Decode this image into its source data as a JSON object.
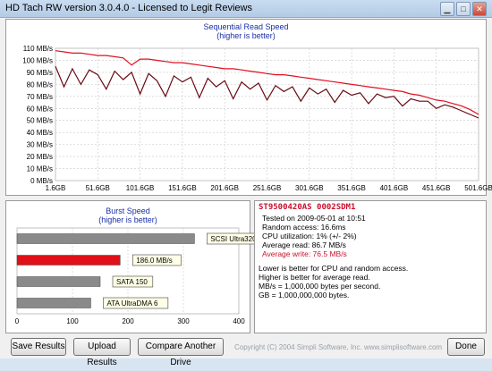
{
  "window": {
    "title": "HD Tach RW version 3.0.4.0  -  Licensed to Legit Reviews"
  },
  "read_chart": {
    "title": "Sequential Read Speed",
    "subtitle": "(higher is better)"
  },
  "burst_chart": {
    "title": "Burst Speed",
    "subtitle": "(higher is better)"
  },
  "drive_info": {
    "model": "ST9500420AS  0002SDM1",
    "tested_on": "Tested on 2009-05-01 at 10:51",
    "random_access": "Random access: 16.6ms",
    "cpu_util": "CPU utilization: 1% (+/- 2%)",
    "avg_read": "Average read: 86.7 MB/s",
    "avg_write": "Average write: 76.5 MB/s",
    "note1": "Lower is better for CPU and random access.",
    "note2": "Higher is better for average read.",
    "note3": "MB/s = 1,000,000 bytes per second.",
    "note4": "GB = 1,000,000,000 bytes."
  },
  "buttons": {
    "save": "Save Results",
    "upload": "Upload Results",
    "compare": "Compare Another Drive",
    "done": "Done"
  },
  "copyright": "Copyright (C) 2004 Simpli Software, Inc. www.simplisoftware.com",
  "colors": {
    "read": "#e01020",
    "write": "#6a0a14",
    "burst_highlight": "#e01018",
    "bar_gray": "#8a8a8a",
    "accent_text": "#1a2fa8",
    "model_text": "#c8102e"
  },
  "chart_data": [
    {
      "type": "line",
      "title": "Sequential Read Speed",
      "subtitle": "(higher is better)",
      "x_ticks": [
        "1.6GB",
        "51.6GB",
        "101.6GB",
        "151.6GB",
        "201.6GB",
        "251.6GB",
        "301.6GB",
        "351.6GB",
        "401.6GB",
        "451.6GB",
        "501.6GB"
      ],
      "y_ticks": [
        "0 MB/s",
        "10 MB/s",
        "20 MB/s",
        "30 MB/s",
        "40 MB/s",
        "50 MB/s",
        "60 MB/s",
        "70 MB/s",
        "80 MB/s",
        "90 MB/s",
        "100 MB/s",
        "110 MB/s"
      ],
      "xlim": [
        1.6,
        501.6
      ],
      "ylim": [
        0,
        110
      ],
      "series": [
        {
          "name": "Read",
          "color": "#e01020",
          "x": [
            1.6,
            11.6,
            21.6,
            31.6,
            41.6,
            51.6,
            61.6,
            71.6,
            81.6,
            91.6,
            101.6,
            111.6,
            121.6,
            131.6,
            141.6,
            151.6,
            161.6,
            171.6,
            181.6,
            191.6,
            201.6,
            211.6,
            221.6,
            231.6,
            241.6,
            251.6,
            261.6,
            271.6,
            281.6,
            291.6,
            301.6,
            311.6,
            321.6,
            331.6,
            341.6,
            351.6,
            361.6,
            371.6,
            381.6,
            391.6,
            401.6,
            411.6,
            421.6,
            431.6,
            441.6,
            451.6,
            461.6,
            471.6,
            481.6,
            491.6,
            501.6
          ],
          "values": [
            108,
            107,
            106,
            106,
            105,
            104,
            104,
            103,
            102,
            96,
            101,
            101,
            100,
            99,
            98,
            98,
            97,
            96,
            95,
            94,
            93,
            93,
            92,
            91,
            90,
            89,
            88,
            88,
            87,
            86,
            85,
            84,
            83,
            82,
            81,
            80,
            79,
            78,
            77,
            76,
            75,
            74,
            72,
            71,
            69,
            67,
            66,
            64,
            62,
            59,
            55
          ]
        },
        {
          "name": "Write",
          "color": "#6a0a14",
          "x": [
            1.6,
            11.6,
            21.6,
            31.6,
            41.6,
            51.6,
            61.6,
            71.6,
            81.6,
            91.6,
            101.6,
            111.6,
            121.6,
            131.6,
            141.6,
            151.6,
            161.6,
            171.6,
            181.6,
            191.6,
            201.6,
            211.6,
            221.6,
            231.6,
            241.6,
            251.6,
            261.6,
            271.6,
            281.6,
            291.6,
            301.6,
            311.6,
            321.6,
            331.6,
            341.6,
            351.6,
            361.6,
            371.6,
            381.6,
            391.6,
            401.6,
            411.6,
            421.6,
            431.6,
            441.6,
            451.6,
            461.6,
            471.6,
            481.6,
            491.6,
            501.6
          ],
          "values": [
            95,
            78,
            93,
            80,
            92,
            88,
            76,
            91,
            84,
            90,
            72,
            89,
            83,
            70,
            87,
            82,
            86,
            69,
            85,
            78,
            83,
            68,
            82,
            76,
            81,
            67,
            79,
            74,
            78,
            66,
            77,
            72,
            76,
            65,
            75,
            71,
            73,
            64,
            72,
            69,
            70,
            62,
            68,
            66,
            66,
            60,
            63,
            61,
            58,
            55,
            52
          ]
        }
      ]
    },
    {
      "type": "bar",
      "title": "Burst Speed",
      "subtitle": "(higher is better)",
      "orientation": "horizontal",
      "x_ticks": [
        "0",
        "100",
        "200",
        "300",
        "400"
      ],
      "xlim": [
        0,
        400
      ],
      "categories": [
        "SCSI Ultra320",
        "186.0 MB/s",
        "SATA 150",
        "ATA UltraDMA 6"
      ],
      "values": [
        320,
        186,
        150,
        133
      ],
      "highlight_index": 1
    }
  ]
}
